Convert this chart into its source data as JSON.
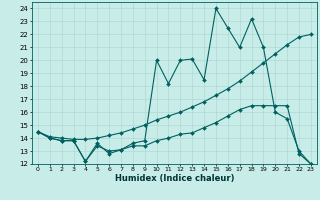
{
  "xlabel": "Humidex (Indice chaleur)",
  "bg_color": "#c8ece8",
  "grid_color": "#b0d8d4",
  "line_color": "#006060",
  "xlim": [
    -0.5,
    23.5
  ],
  "ylim": [
    12,
    24.5
  ],
  "yticks": [
    12,
    13,
    14,
    15,
    16,
    17,
    18,
    19,
    20,
    21,
    22,
    23,
    24
  ],
  "xticks": [
    0,
    1,
    2,
    3,
    4,
    5,
    6,
    7,
    8,
    9,
    10,
    11,
    12,
    13,
    14,
    15,
    16,
    17,
    18,
    19,
    20,
    21,
    22,
    23
  ],
  "series1_x": [
    0,
    1,
    2,
    3,
    4,
    5,
    6,
    7,
    8,
    9,
    10,
    11,
    12,
    13,
    14,
    15,
    16,
    17,
    18,
    19,
    20,
    21,
    22,
    23
  ],
  "series1_y": [
    14.5,
    14.0,
    13.8,
    13.8,
    12.2,
    13.6,
    12.8,
    13.1,
    13.6,
    13.8,
    20.0,
    18.2,
    20.0,
    20.1,
    18.5,
    24.0,
    22.5,
    21.0,
    23.2,
    21.0,
    16.0,
    15.5,
    13.0,
    12.0
  ],
  "series2_x": [
    0,
    1,
    2,
    3,
    4,
    5,
    6,
    7,
    8,
    9,
    10,
    11,
    12,
    13,
    14,
    15,
    16,
    17,
    18,
    19,
    20,
    21,
    22,
    23
  ],
  "series2_y": [
    14.5,
    14.1,
    14.0,
    13.9,
    13.9,
    14.0,
    14.2,
    14.4,
    14.7,
    15.0,
    15.4,
    15.7,
    16.0,
    16.4,
    16.8,
    17.3,
    17.8,
    18.4,
    19.1,
    19.8,
    20.5,
    21.2,
    21.8,
    22.0
  ],
  "series3_x": [
    0,
    1,
    2,
    3,
    4,
    5,
    6,
    7,
    8,
    9,
    10,
    11,
    12,
    13,
    14,
    15,
    16,
    17,
    18,
    19,
    20,
    21,
    22,
    23
  ],
  "series3_y": [
    14.5,
    14.0,
    13.8,
    13.8,
    12.2,
    13.4,
    13.0,
    13.1,
    13.4,
    13.4,
    13.8,
    14.0,
    14.3,
    14.4,
    14.8,
    15.2,
    15.7,
    16.2,
    16.5,
    16.5,
    16.5,
    16.5,
    12.8,
    12.0
  ]
}
